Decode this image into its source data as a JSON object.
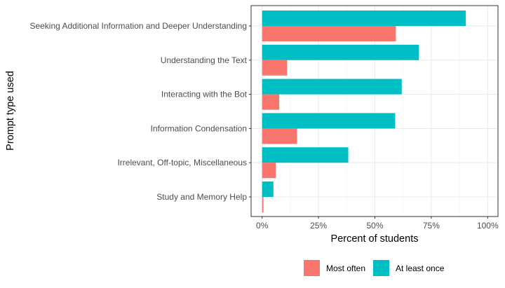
{
  "chart_data": {
    "type": "bar",
    "orientation": "horizontal",
    "title": "",
    "xlabel": "Percent of students",
    "ylabel": "Prompt type used",
    "xlim": [
      0,
      100
    ],
    "x_ticks": [
      "0%",
      "25%",
      "50%",
      "75%",
      "100%"
    ],
    "x_tick_values": [
      0,
      25,
      50,
      75,
      100
    ],
    "grid": true,
    "legend_position": "bottom",
    "categories": [
      "Seeking Additional Information and Deeper Understanding",
      "Understanding the Text",
      "Interacting with the Bot",
      "Information Condensation",
      "Irrelevant, Off-topic, Miscellaneous",
      "Study and Memory Help"
    ],
    "series": [
      {
        "name": "Most often",
        "color": "#F8766D",
        "values": [
          59.3,
          11.1,
          7.6,
          15.5,
          6.1,
          0.6
        ]
      },
      {
        "name": "At least once",
        "color": "#00BFC4",
        "values": [
          90.3,
          69.5,
          61.9,
          59.0,
          38.2,
          5.0
        ]
      }
    ]
  }
}
